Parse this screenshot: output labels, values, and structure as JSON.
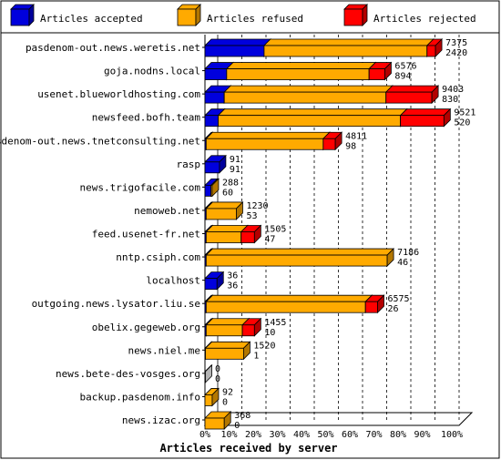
{
  "chart_data": {
    "type": "bar",
    "orientation": "horizontal",
    "stacked": true,
    "percent_scale": true,
    "xlabel": "Articles received by server",
    "xticks": [
      "0%",
      "10%",
      "20%",
      "30%",
      "40%",
      "50%",
      "60%",
      "70%",
      "80%",
      "90%",
      "100%"
    ],
    "grid": true,
    "legend_position": "top",
    "series": [
      {
        "name": "Articles accepted",
        "color": "#0000dd"
      },
      {
        "name": "Articles refused",
        "color": "#ffaa00"
      },
      {
        "name": "Articles rejected",
        "color": "#ff0000"
      }
    ],
    "categories": [
      "pasdenom-out.news.weretis.net",
      "goja.nodns.local",
      "usenet.blueworldhosting.com",
      "newsfeed.bofh.team",
      "pasdenom-out.news.tnetconsulting.net",
      "rasp",
      "news.trigofacile.com",
      "nemoweb.net",
      "feed.usenet-fr.net",
      "nntp.csiph.com",
      "localhost",
      "outgoing.news.lysator.liu.se",
      "obelix.gegeweb.org",
      "news.niel.me",
      "news.bete-des-vosges.org",
      "backup.pasdenom.info",
      "news.izac.org"
    ],
    "offered_labels": [
      "7375",
      "6576",
      "9403",
      "9521",
      "4811",
      "91",
      "288",
      "1230",
      "1505",
      "7186",
      "36",
      "6575",
      "1455",
      "1520",
      "0",
      "92",
      "368"
    ],
    "accepted_labels": [
      "2420",
      "894",
      "830",
      "520",
      "98",
      "91",
      "60",
      "53",
      "47",
      "46",
      "36",
      "26",
      "10",
      "1",
      "0",
      "0",
      "0"
    ],
    "percent_accepted": [
      24.5,
      9.0,
      8.0,
      5.5,
      0.5,
      6.0,
      2.5,
      0.5,
      0.5,
      0.5,
      5.0,
      0.5,
      0.5,
      0.2,
      0,
      0,
      0
    ],
    "percent_refused": [
      67.5,
      59.0,
      67.0,
      75.5,
      48.5,
      0,
      0.5,
      12.5,
      14.5,
      75.0,
      0,
      66.0,
      15.0,
      15.8,
      0,
      3.0,
      8.0
    ],
    "percent_rejected": [
      3.5,
      6.5,
      19.0,
      18.0,
      5.0,
      0,
      0,
      0,
      5.5,
      0,
      0,
      5.0,
      5.0,
      0,
      0,
      0,
      0
    ]
  }
}
